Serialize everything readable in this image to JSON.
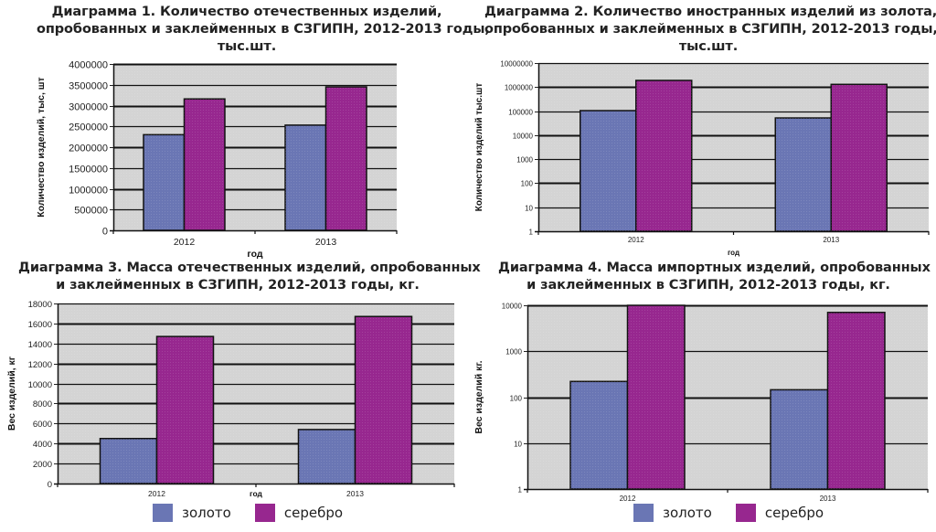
{
  "colors": {
    "gold": "#6a76b4",
    "silver": "#97278f",
    "plot_bg": "#d4d4d4",
    "grid": "#111111"
  },
  "legend": {
    "gold": "золото",
    "silver": "серебро"
  },
  "chart_data": [
    {
      "type": "bar",
      "title_lines": [
        "Диаграмма 1. Количество отечественных изделий,",
        "опробованных и заклейменных в СЗГИПН, 2012-2013 годы,",
        "тыс.шт."
      ],
      "xlabel": "год",
      "ylabel": "Количество изделий, тыс, шт",
      "scale": "linear",
      "ylim": [
        0,
        4000000
      ],
      "yticks": [
        "0",
        "500000",
        "1000000",
        "1500000",
        "2000000",
        "2500000",
        "3000000",
        "3500000",
        "4000000"
      ],
      "ytick_values": [
        0,
        500000,
        1000000,
        1500000,
        2000000,
        2500000,
        3000000,
        3500000,
        4000000
      ],
      "categories": [
        "2012",
        "2013"
      ],
      "series": [
        {
          "name": "золото",
          "values": [
            2300000,
            2530000
          ]
        },
        {
          "name": "серебро",
          "values": [
            3160000,
            3450000
          ]
        }
      ]
    },
    {
      "type": "bar",
      "title_lines": [
        "Диаграмма 2. Количество иностранных изделий из золота,",
        "опробованных и заклейменных в СЗГИПН, 2012-2013 годы,",
        "тыс.шт."
      ],
      "xlabel": "год",
      "ylabel": "Количество изделий тыс.шт",
      "scale": "log",
      "ylim": [
        1,
        10000000
      ],
      "yticks": [
        "1",
        "10",
        "100",
        "1000",
        "10000",
        "100000",
        "1000000",
        "10000000"
      ],
      "ytick_values": [
        1,
        10,
        100,
        1000,
        10000,
        100000,
        1000000,
        10000000
      ],
      "categories": [
        "2012",
        "2013"
      ],
      "series": [
        {
          "name": "золото",
          "values": [
            105000,
            52000
          ]
        },
        {
          "name": "серебро",
          "values": [
            1900000,
            1300000
          ]
        }
      ]
    },
    {
      "type": "bar",
      "title_lines": [
        "Диаграмма 3. Масса отечественных изделий, опробованных",
        "и заклейменных в СЗГИПН, 2012-2013 годы, кг."
      ],
      "xlabel": "год",
      "ylabel": "Вес изделий, кг",
      "scale": "linear",
      "ylim": [
        0,
        18000
      ],
      "yticks": [
        "0",
        "2000",
        "4000",
        "6000",
        "8000",
        "10000",
        "12000",
        "14000",
        "16000",
        "18000"
      ],
      "ytick_values": [
        0,
        2000,
        4000,
        6000,
        8000,
        10000,
        12000,
        14000,
        16000,
        18000
      ],
      "categories": [
        "2012",
        "2013"
      ],
      "series": [
        {
          "name": "золото",
          "values": [
            4500,
            5400
          ]
        },
        {
          "name": "серебро",
          "values": [
            14700,
            16700
          ]
        }
      ],
      "legend": "bottom"
    },
    {
      "type": "bar",
      "title_lines": [
        "Диаграмма 4. Масса импортных изделий, опробованных",
        "и заклейменных в СЗГИПН, 2012-2013 годы, кг."
      ],
      "xlabel": "",
      "ylabel": "Вес изделий кг.",
      "scale": "log",
      "ylim": [
        1,
        10000
      ],
      "yticks": [
        "1",
        "10",
        "100",
        "1000",
        "10000"
      ],
      "ytick_values": [
        1,
        10,
        100,
        1000,
        10000
      ],
      "categories": [
        "2012",
        "2013"
      ],
      "series": [
        {
          "name": "золото",
          "values": [
            220,
            145
          ]
        },
        {
          "name": "серебро",
          "values": [
            10000,
            7000
          ]
        }
      ],
      "legend": "bottom"
    }
  ]
}
